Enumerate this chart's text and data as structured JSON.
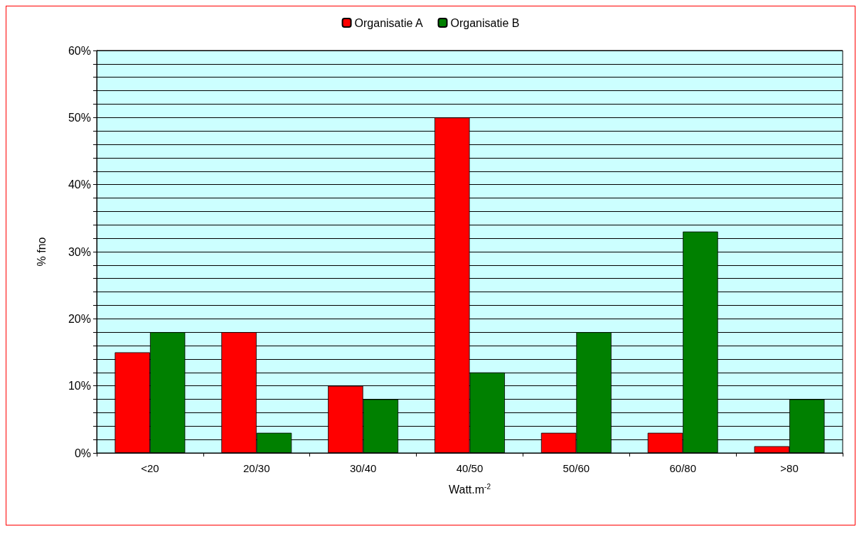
{
  "chart_data": {
    "type": "bar",
    "xlabel": "Watt.m$^{-2}$",
    "ylabel": "% fno",
    "categories": [
      "<20",
      "20/30",
      "30/40",
      "40/50",
      "50/60",
      "60/80",
      ">80"
    ],
    "series": [
      {
        "name": "Organisatie A",
        "color": "#ff0000",
        "values": [
          15,
          18,
          10,
          50,
          3,
          3,
          1
        ]
      },
      {
        "name": "Organisatie B",
        "color": "#008000",
        "values": [
          18,
          3,
          8,
          12,
          18,
          33,
          8
        ]
      }
    ],
    "ylim": [
      0,
      60
    ],
    "yticks": [
      {
        "value": 0,
        "label": "0%"
      },
      {
        "value": 2,
        "label": null
      },
      {
        "value": 4,
        "label": null
      },
      {
        "value": 6,
        "label": null
      },
      {
        "value": 8,
        "label": null
      },
      {
        "value": 10,
        "label": "10%"
      },
      {
        "value": 12,
        "label": null
      },
      {
        "value": 14,
        "label": null
      },
      {
        "value": 16,
        "label": null
      },
      {
        "value": 18,
        "label": null
      },
      {
        "value": 20,
        "label": "20%"
      },
      {
        "value": 22,
        "label": null
      },
      {
        "value": 24,
        "label": null
      },
      {
        "value": 26,
        "label": null
      },
      {
        "value": 28,
        "label": null
      },
      {
        "value": 30,
        "label": "30%"
      },
      {
        "value": 32,
        "label": null
      },
      {
        "value": 34,
        "label": null
      },
      {
        "value": 36,
        "label": null
      },
      {
        "value": 38,
        "label": null
      },
      {
        "value": 40,
        "label": "40%"
      },
      {
        "value": 42,
        "label": null
      },
      {
        "value": 44,
        "label": null
      },
      {
        "value": 46,
        "label": null
      },
      {
        "value": 48,
        "label": null
      },
      {
        "value": 50,
        "label": "50%"
      },
      {
        "value": 52,
        "label": null
      },
      {
        "value": 54,
        "label": null
      },
      {
        "value": 56,
        "label": null
      },
      {
        "value": 58,
        "label": null
      },
      {
        "value": 60,
        "label": "60%"
      }
    ],
    "grid": "y",
    "legend": "top"
  }
}
